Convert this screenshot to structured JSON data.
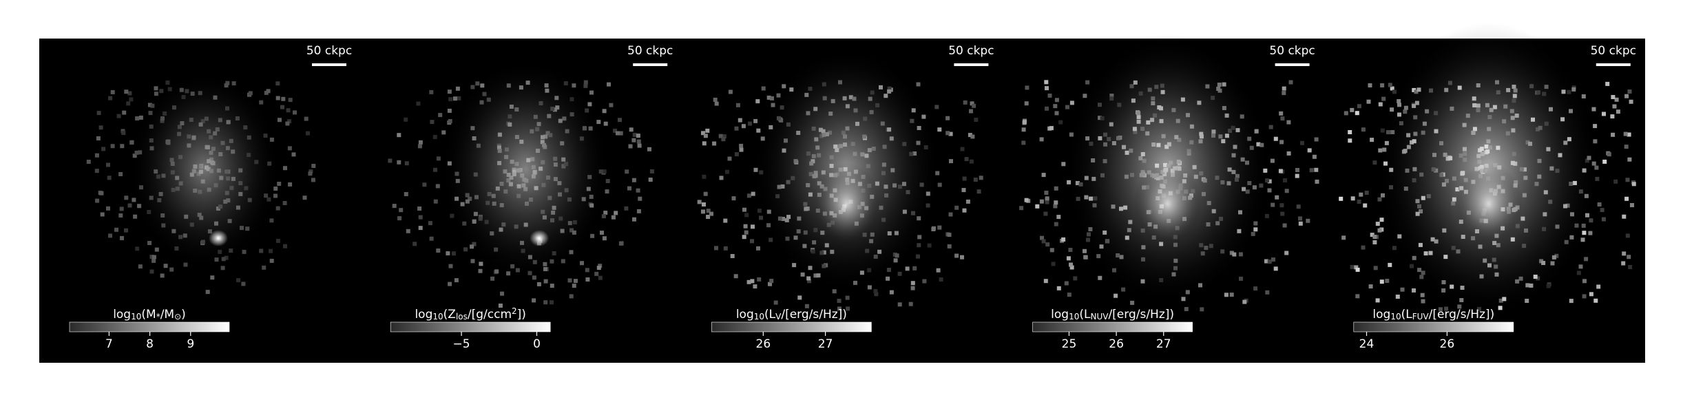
{
  "panels": [
    {
      "scale_label": "50 ckpc",
      "colorbar_label": [
        {
          "t": "log"
        },
        {
          "t": "10",
          "sub": true
        },
        {
          "t": "(M"
        },
        {
          "t": "*",
          "sub": true
        },
        {
          "t": "/M"
        },
        {
          "t": "⊙",
          "sub": true
        },
        {
          "t": ")"
        }
      ],
      "colorbar_lim": [
        6.03,
        9.95
      ],
      "colorbar_ticks": [
        7,
        8,
        9
      ]
    },
    {
      "scale_label": "50 ckpc",
      "colorbar_label": [
        {
          "t": "log"
        },
        {
          "t": "10",
          "sub": true
        },
        {
          "t": "(Z"
        },
        {
          "t": "los",
          "sub": true
        },
        {
          "t": "/[g/ccm"
        },
        {
          "t": "2",
          "sup": true
        },
        {
          "t": "])"
        }
      ],
      "colorbar_lim": [
        -9.7,
        0.9
      ],
      "colorbar_ticks": [
        {
          "value": -5,
          "label": "−5"
        },
        0
      ]
    },
    {
      "scale_label": "50 ckpc",
      "colorbar_label": [
        {
          "t": "log"
        },
        {
          "t": "10",
          "sub": true
        },
        {
          "t": "(L"
        },
        {
          "t": "V",
          "sub": true
        },
        {
          "t": "/[erg/s/Hz])"
        }
      ],
      "colorbar_lim": [
        25.17,
        27.74
      ],
      "colorbar_ticks": [
        26,
        27
      ]
    },
    {
      "scale_label": "50 ckpc",
      "colorbar_label": [
        {
          "t": "log"
        },
        {
          "t": "10",
          "sub": true
        },
        {
          "t": "(L"
        },
        {
          "t": "NUV",
          "sub": true
        },
        {
          "t": "/[erg/s/Hz])"
        }
      ],
      "colorbar_lim": [
        24.23,
        27.61
      ],
      "colorbar_ticks": [
        25,
        26,
        27
      ]
    },
    {
      "scale_label": "50 ckpc",
      "colorbar_label": [
        {
          "t": "log"
        },
        {
          "t": "10",
          "sub": true
        },
        {
          "t": "(L"
        },
        {
          "t": "FUV",
          "sub": true
        },
        {
          "t": "/[erg/s/Hz])"
        }
      ],
      "colorbar_lim": [
        23.68,
        27.65
      ],
      "colorbar_ticks": [
        24,
        26
      ]
    }
  ]
}
